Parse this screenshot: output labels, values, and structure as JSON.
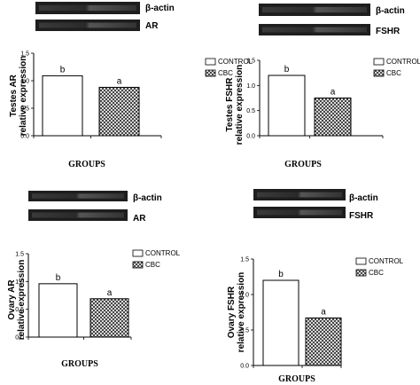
{
  "colors": {
    "ink": "#000000",
    "bar_control": "#ffffff",
    "blot_dark": "#1e1e1e",
    "blot_band": "#3a3a3a"
  },
  "chart_data": [
    {
      "type": "bar",
      "ylabel": [
        "Testes AR",
        "relative expression"
      ],
      "xlabel": "GROUPS",
      "ylim": [
        0,
        1.5
      ],
      "yticks": [
        "0.0",
        "0.5",
        "1.0",
        "1.5"
      ],
      "categories": [
        "CONTROL",
        "CBC"
      ],
      "values": [
        1.09,
        0.88
      ],
      "significance": [
        "b",
        "a"
      ],
      "legend": [
        "CONTROL",
        "CBC"
      ],
      "blots": [
        "β-actin",
        "AR"
      ]
    },
    {
      "type": "bar",
      "ylabel": [
        "Testes FSHR",
        "relative expression"
      ],
      "xlabel": "GROUPS",
      "ylim": [
        0,
        1.5
      ],
      "yticks": [
        "0.0",
        "0.5",
        "1.0",
        "1.5"
      ],
      "categories": [
        "CONTROL",
        "CBC"
      ],
      "values": [
        1.2,
        0.75
      ],
      "significance": [
        "b",
        "a"
      ],
      "legend": [
        "CONTROL",
        "CBC"
      ],
      "blots": [
        "β-actin",
        "FSHR"
      ]
    },
    {
      "type": "bar",
      "ylabel": [
        "Ovary AR",
        "relative expression"
      ],
      "xlabel": "GROUPS",
      "ylim": [
        0,
        1.5
      ],
      "yticks": [
        "0.0",
        "0.5",
        "1.0",
        "1.5"
      ],
      "categories": [
        "CONTROL",
        "CBC"
      ],
      "values": [
        0.96,
        0.69
      ],
      "significance": [
        "b",
        "a"
      ],
      "legend": [
        "CONTROL",
        "CBC"
      ],
      "blots": [
        "β-actin",
        "AR"
      ]
    },
    {
      "type": "bar",
      "ylabel": [
        "Ovary FSHR",
        "relative expression"
      ],
      "xlabel": "GROUPS",
      "ylim": [
        0,
        1.5
      ],
      "yticks": [
        "0.0",
        "0.5",
        "1.0",
        "1.5"
      ],
      "categories": [
        "CONTROL",
        "CBC"
      ],
      "values": [
        1.2,
        0.67
      ],
      "significance": [
        "b",
        "a"
      ],
      "legend": [
        "CONTROL",
        "CBC"
      ],
      "blots": [
        "β-actin",
        "FSHR"
      ]
    }
  ]
}
